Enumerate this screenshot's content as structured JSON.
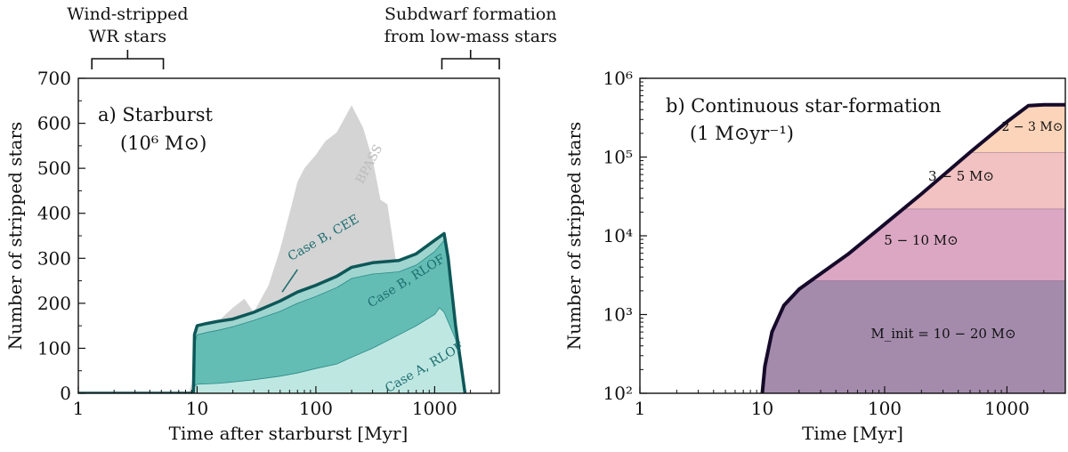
{
  "chart_data": [
    {
      "type": "area",
      "panel": "a",
      "title": "a)  Starburst",
      "subtitle": "(10⁶ M⊙)",
      "xlabel": "Time after starburst [Myr]",
      "ylabel": "Number of stripped stars",
      "xscale": "log",
      "xlim": [
        1,
        3500
      ],
      "ylim": [
        0,
        700
      ],
      "xticks": [
        1,
        10,
        100,
        1000
      ],
      "xtick_labels": [
        "1",
        "10",
        "100",
        "1000"
      ],
      "yticks": [
        0,
        100,
        200,
        300,
        400,
        500,
        600,
        700
      ],
      "ytick_labels": [
        "0",
        "100",
        "200",
        "300",
        "400",
        "500",
        "600",
        "700"
      ],
      "top_annotations": [
        {
          "lines": [
            "Wind-stripped",
            "WR stars"
          ],
          "range": [
            1.3,
            5.2
          ]
        },
        {
          "lines": [
            "Subdwarf formation",
            "from low-mass stars"
          ],
          "range": [
            1150,
            3500
          ]
        }
      ],
      "series": [
        {
          "name": "BPASS",
          "color": "#d4d4d4",
          "x": [
            1,
            8.5,
            9,
            10,
            12,
            15,
            20,
            25,
            30,
            40,
            50,
            60,
            70,
            80,
            100,
            120,
            150,
            200,
            250,
            300,
            350,
            400,
            500,
            550,
            600,
            800,
            1000,
            1200,
            1500,
            1800
          ],
          "y": [
            0,
            0,
            20,
            80,
            110,
            160,
            190,
            210,
            180,
            240,
            320,
            400,
            470,
            500,
            530,
            560,
            580,
            640,
            590,
            520,
            430,
            420,
            250,
            100,
            60,
            55,
            50,
            40,
            20,
            0
          ]
        },
        {
          "name": "Case B, CEE",
          "color": "#9fd4cf",
          "x": [
            1,
            9.3,
            9.5,
            10,
            12,
            15,
            20,
            30,
            50,
            70,
            100,
            150,
            200,
            300,
            500,
            700,
            1000,
            1200,
            1300,
            1500,
            1800
          ],
          "y": [
            0,
            0,
            130,
            150,
            155,
            160,
            165,
            180,
            205,
            225,
            240,
            260,
            280,
            290,
            295,
            310,
            340,
            355,
            300,
            150,
            0
          ]
        },
        {
          "name": "Case B, RLOF",
          "color": "#63bdb5",
          "x": [
            1,
            9.3,
            9.5,
            10,
            12,
            15,
            20,
            30,
            50,
            70,
            100,
            150,
            200,
            300,
            500,
            700,
            1000,
            1200,
            1300,
            1500,
            1800
          ],
          "y": [
            0,
            0,
            110,
            130,
            135,
            140,
            148,
            162,
            182,
            200,
            215,
            235,
            255,
            265,
            270,
            285,
            315,
            340,
            290,
            140,
            0
          ]
        },
        {
          "name": "Case A, RLOF",
          "color": "#bfe7e2",
          "x": [
            1,
            9.3,
            9.5,
            10,
            15,
            20,
            30,
            50,
            70,
            100,
            150,
            200,
            300,
            500,
            700,
            1000,
            1100,
            1200,
            1500,
            1800
          ],
          "y": [
            0,
            0,
            15,
            20,
            22,
            25,
            30,
            38,
            45,
            55,
            65,
            80,
            100,
            130,
            150,
            175,
            190,
            180,
            120,
            0
          ]
        }
      ],
      "total": {
        "name": "Total",
        "color": "#0e5758",
        "x": [
          1,
          9.3,
          9.5,
          10,
          12,
          15,
          20,
          30,
          50,
          70,
          100,
          150,
          200,
          300,
          500,
          700,
          1000,
          1200,
          1300,
          1500,
          1800
        ],
        "y": [
          0,
          0,
          130,
          150,
          155,
          160,
          165,
          180,
          205,
          225,
          240,
          260,
          280,
          290,
          295,
          310,
          340,
          355,
          300,
          150,
          0
        ]
      },
      "annotations": [
        {
          "text": "BPASS",
          "x": 300,
          "y": 505,
          "angle": -62,
          "color": "#bcbcbc"
        },
        {
          "text": "Case B, CEE",
          "x": 120,
          "y": 338,
          "angle": -30,
          "color": "#1e6e70"
        },
        {
          "text": "Case B, RLOF",
          "x": 600,
          "y": 242,
          "angle": -32,
          "color": "#1e6e70"
        },
        {
          "text": "Case A, RLOF",
          "x": 850,
          "y": 50,
          "angle": -30,
          "color": "#1e6e70"
        }
      ]
    },
    {
      "type": "area",
      "panel": "b",
      "title": "b) Continuous star-formation",
      "subtitle": "(1 M⊙yr⁻¹)",
      "xlabel": "Time [Myr]",
      "ylabel": "Number of stripped stars",
      "xscale": "log",
      "yscale": "log",
      "xlim": [
        1,
        3000
      ],
      "ylim": [
        100,
        1000000
      ],
      "xticks": [
        1,
        10,
        100,
        1000
      ],
      "xtick_labels": [
        "1",
        "10",
        "100",
        "1000"
      ],
      "yticks": [
        100,
        1000,
        10000,
        100000,
        1000000
      ],
      "ytick_labels": [
        "10²",
        "10³",
        "10⁴",
        "10⁵",
        "10⁶"
      ],
      "total": {
        "name": "Total",
        "color": "#160a2a",
        "x": [
          10,
          10.5,
          12,
          15,
          20,
          30,
          50,
          100,
          200,
          500,
          1000,
          1500,
          2000,
          3000
        ],
        "y": [
          100,
          220,
          600,
          1300,
          2100,
          3300,
          5800,
          14000,
          34000,
          115000,
          280000,
          450000,
          460000,
          460000
        ]
      },
      "bands": [
        {
          "label": "M_init = 10 − 20 M⊙",
          "range": [
            100,
            2700
          ],
          "color": "#a48bac"
        },
        {
          "label": "5 − 10 M⊙",
          "range": [
            2700,
            22000
          ],
          "color": "#dba7c3"
        },
        {
          "label": "3 − 5 M⊙",
          "range": [
            22000,
            115000
          ],
          "color": "#f2c1c1"
        },
        {
          "label": "2 − 3 M⊙",
          "range": [
            115000,
            460000
          ],
          "color": "#fbd4b9"
        }
      ]
    }
  ]
}
